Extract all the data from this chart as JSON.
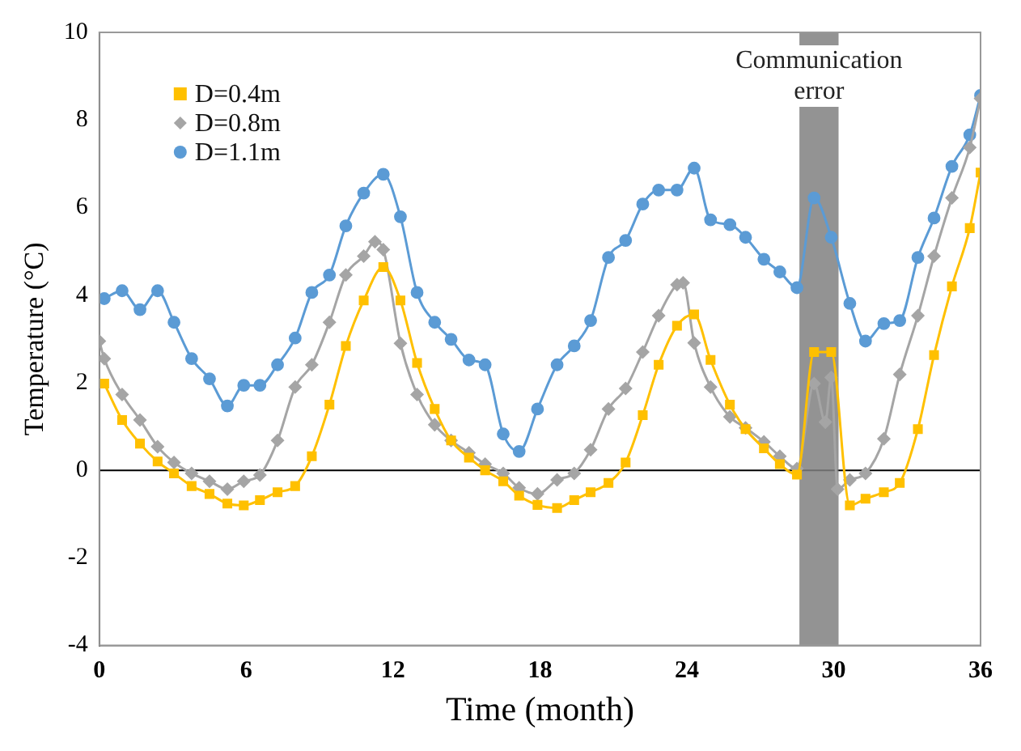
{
  "chart_data": {
    "type": "line",
    "xlabel": "Time (month)",
    "ylabel": "Temperature (°C)",
    "xlim": [
      0,
      36
    ],
    "xticks": [
      0,
      6,
      12,
      18,
      24,
      30,
      36
    ],
    "ylim": [
      -4,
      10
    ],
    "yticks": [
      -4,
      -2,
      0,
      2,
      4,
      6,
      8,
      10
    ],
    "grid": false,
    "legend": "top left",
    "line_style": "solid",
    "ref_lines": [
      {
        "axis": "y",
        "value": 0,
        "color": "#000000"
      }
    ],
    "bands": [
      {
        "axis": "x",
        "from": 28.6,
        "to": 30.2,
        "label": "Communication error",
        "color": "#808080"
      }
    ],
    "series": [
      {
        "name": "D=0.4m",
        "color": "#ffc000",
        "marker": "square",
        "x": [
          0.2,
          0.93,
          1.66,
          2.38,
          3.05,
          3.77,
          4.5,
          5.23,
          5.9,
          6.56,
          7.28,
          8.0,
          8.68,
          9.4,
          10.07,
          10.8,
          11.6,
          12.3,
          12.98,
          13.7,
          14.37,
          15.1,
          15.76,
          16.5,
          17.15,
          17.9,
          18.7,
          19.4,
          20.07,
          20.8,
          21.5,
          22.2,
          22.85,
          23.6,
          24.3,
          24.97,
          25.76,
          26.4,
          27.15,
          27.8,
          28.5,
          29.2,
          29.9,
          30.66,
          31.3,
          32.05,
          32.7,
          33.44,
          34.1,
          34.83,
          35.56,
          36
        ],
        "values": [
          1.98,
          1.15,
          0.61,
          0.2,
          -0.07,
          -0.36,
          -0.54,
          -0.76,
          -0.8,
          -0.68,
          -0.5,
          -0.36,
          0.32,
          1.5,
          2.84,
          3.88,
          4.64,
          3.88,
          2.45,
          1.4,
          0.68,
          0.29,
          0,
          -0.25,
          -0.58,
          -0.79,
          -0.86,
          -0.68,
          -0.5,
          -0.29,
          0.18,
          1.26,
          2.41,
          3.3,
          3.56,
          2.52,
          1.5,
          0.94,
          0.5,
          0.14,
          -0.1,
          2.7,
          2.7,
          -0.8,
          -0.65,
          -0.5,
          -0.29,
          0.94,
          2.63,
          4.2,
          5.53,
          6.8
        ]
      },
      {
        "name": "D=0.8m",
        "color": "#a5a5a5",
        "marker": "diamond",
        "x": [
          0,
          0.2,
          0.93,
          1.66,
          2.38,
          3.05,
          3.77,
          4.5,
          5.23,
          5.9,
          6.56,
          7.28,
          8.0,
          8.68,
          9.4,
          10.07,
          10.8,
          11.26,
          11.6,
          12.3,
          12.98,
          13.7,
          14.37,
          15.1,
          15.76,
          16.5,
          17.15,
          17.9,
          18.7,
          19.4,
          20.07,
          20.8,
          21.5,
          22.2,
          22.85,
          23.6,
          23.85,
          24.3,
          24.97,
          25.76,
          26.4,
          27.15,
          27.8,
          28.5,
          29.2,
          29.66,
          29.9,
          30.16,
          30.66,
          31.3,
          32.05,
          32.7,
          33.44,
          34.1,
          34.83,
          35.56,
          36
        ],
        "values": [
          2.95,
          2.55,
          1.73,
          1.15,
          0.54,
          0.18,
          -0.07,
          -0.25,
          -0.43,
          -0.25,
          -0.11,
          0.68,
          1.9,
          2.41,
          3.38,
          4.46,
          4.89,
          5.22,
          5.04,
          2.9,
          1.73,
          1.04,
          0.68,
          0.4,
          0.14,
          -0.07,
          -0.4,
          -0.54,
          -0.22,
          -0.07,
          0.47,
          1.4,
          1.87,
          2.7,
          3.53,
          4.24,
          4.28,
          2.91,
          1.9,
          1.22,
          0.97,
          0.65,
          0.32,
          0.04,
          1.98,
          1.1,
          2.12,
          -0.43,
          -0.22,
          -0.07,
          0.72,
          2.19,
          3.53,
          4.89,
          6.22,
          7.37,
          8.49
        ]
      },
      {
        "name": "D=1.1m",
        "color": "#5b9bd5",
        "marker": "circle",
        "x": [
          0.2,
          0.93,
          1.66,
          2.38,
          3.05,
          3.77,
          4.5,
          5.23,
          5.9,
          6.56,
          7.28,
          8.0,
          8.68,
          9.4,
          10.07,
          10.8,
          11.6,
          12.3,
          12.98,
          13.7,
          14.37,
          15.1,
          15.76,
          16.5,
          17.15,
          17.9,
          18.7,
          19.4,
          20.07,
          20.8,
          21.5,
          22.2,
          22.85,
          23.6,
          24.3,
          24.97,
          25.76,
          26.4,
          27.15,
          27.8,
          28.5,
          29.2,
          29.9,
          30.66,
          31.3,
          32.05,
          32.7,
          33.44,
          34.1,
          34.83,
          35.56,
          36
        ],
        "values": [
          3.92,
          4.1,
          3.67,
          4.1,
          3.38,
          2.55,
          2.09,
          1.47,
          1.94,
          1.94,
          2.41,
          3.02,
          4.06,
          4.46,
          5.58,
          6.33,
          6.76,
          5.79,
          4.06,
          3.38,
          2.99,
          2.52,
          2.41,
          0.83,
          0.43,
          1.4,
          2.41,
          2.84,
          3.42,
          4.86,
          5.25,
          6.08,
          6.4,
          6.4,
          6.9,
          5.72,
          5.61,
          5.32,
          4.82,
          4.53,
          4.17,
          6.22,
          5.32,
          3.81,
          2.95,
          3.35,
          3.42,
          4.86,
          5.76,
          6.94,
          7.66,
          8.56
        ]
      }
    ]
  }
}
